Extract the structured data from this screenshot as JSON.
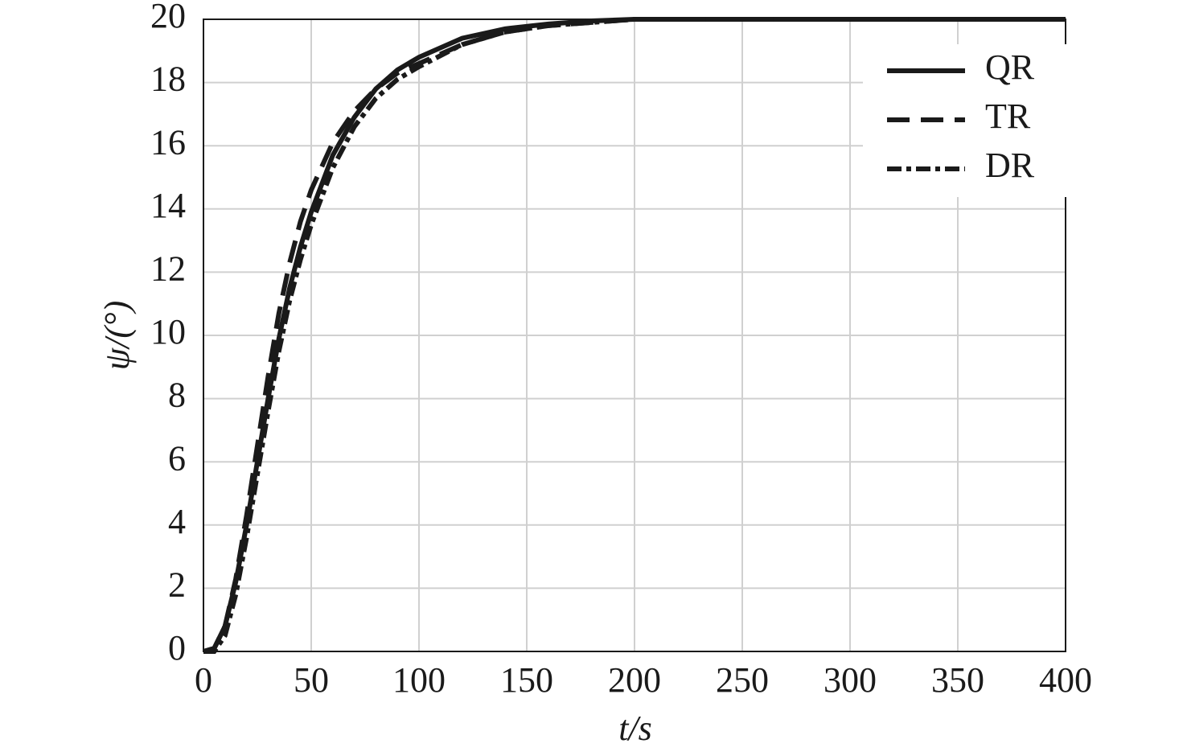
{
  "chart_data": {
    "type": "line",
    "xlabel": "t/s",
    "ylabel": "ψ/(°)",
    "x": [
      0,
      5,
      10,
      15,
      20,
      25,
      30,
      35,
      40,
      45,
      50,
      60,
      70,
      80,
      90,
      100,
      120,
      140,
      160,
      180,
      200,
      250,
      300,
      350,
      400
    ],
    "series": [
      {
        "name": "QR",
        "color": "#1a1a1a",
        "dash": "solid",
        "values": [
          0,
          0.1,
          0.8,
          2.2,
          4.0,
          6.0,
          8.0,
          9.9,
          11.5,
          12.8,
          13.9,
          15.7,
          16.9,
          17.8,
          18.4,
          18.8,
          19.4,
          19.7,
          19.85,
          19.95,
          20,
          20,
          20,
          20,
          20
        ]
      },
      {
        "name": "TR",
        "color": "#1a1a1a",
        "dash": "dashed",
        "values": [
          0,
          0.1,
          0.8,
          2.3,
          4.3,
          6.5,
          8.7,
          10.7,
          12.3,
          13.6,
          14.6,
          16.1,
          17.1,
          17.8,
          18.3,
          18.6,
          19.2,
          19.6,
          19.8,
          19.9,
          20,
          20,
          20,
          20,
          20
        ]
      },
      {
        "name": "DR",
        "color": "#1a1a1a",
        "dash": "dashdot",
        "values": [
          0,
          0,
          0.5,
          1.8,
          3.6,
          5.6,
          7.6,
          9.5,
          11.1,
          12.4,
          13.5,
          15.3,
          16.6,
          17.5,
          18.1,
          18.5,
          19.2,
          19.6,
          19.8,
          19.9,
          20,
          20,
          20,
          20,
          20
        ]
      }
    ],
    "xlim": [
      0,
      400
    ],
    "xticks": [
      0,
      50,
      100,
      150,
      200,
      250,
      300,
      350,
      400
    ],
    "ylim": [
      0,
      20
    ],
    "yticks": [
      0,
      2,
      4,
      6,
      8,
      10,
      12,
      14,
      16,
      18,
      20
    ],
    "grid": true,
    "legend": "upper right"
  }
}
